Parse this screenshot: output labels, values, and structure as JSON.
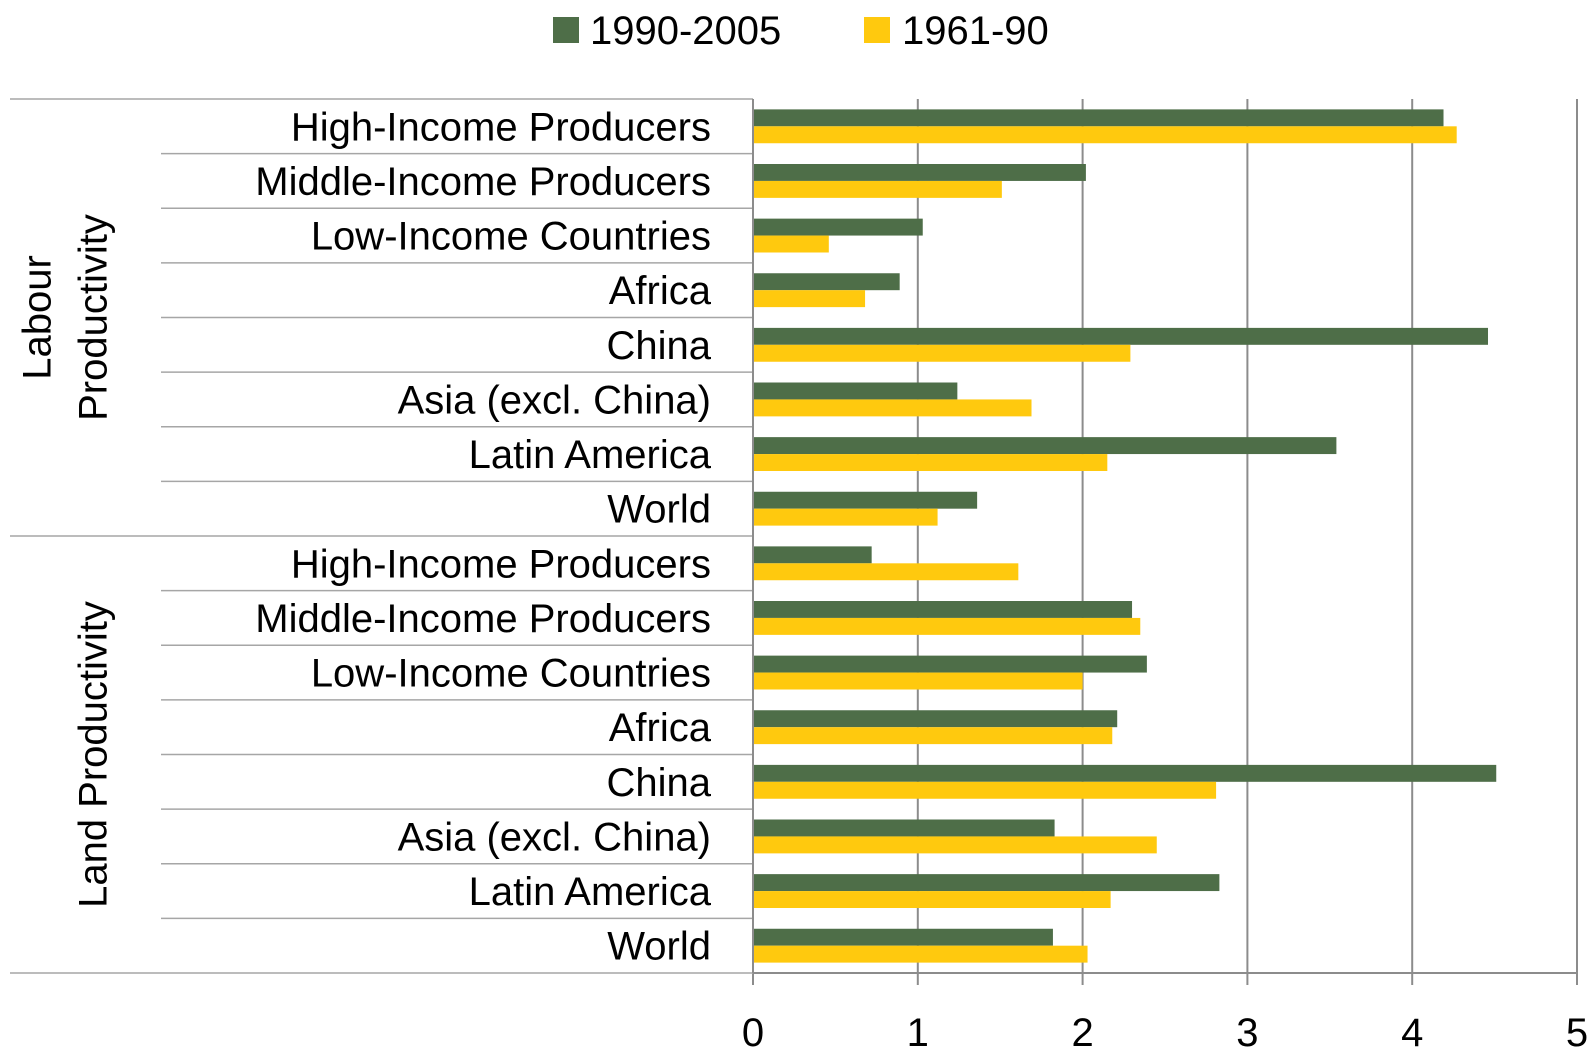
{
  "chart_data": {
    "type": "bar",
    "orientation": "horizontal",
    "legend": {
      "placement": "top-center",
      "items": [
        {
          "label": "1990-2005",
          "color": "#4e6e48"
        },
        {
          "label": "1961-90",
          "color": "#ffc90e"
        }
      ]
    },
    "xlim": [
      0,
      5
    ],
    "x_ticks": [
      "0",
      "1",
      "2",
      "3",
      "4",
      "5"
    ],
    "grid": true,
    "groups": [
      {
        "label": "Labour Productivity",
        "label_lines": [
          "Labour",
          "Productivity"
        ],
        "categories": [
          "High-Income Producers",
          "Middle-Income Producers",
          "Low-Income Countries",
          "Africa",
          "China",
          "Asia (excl. China)",
          "Latin America",
          "World"
        ],
        "series": [
          {
            "name": "1990-2005",
            "values": [
              4.19,
              2.02,
              1.03,
              0.89,
              4.46,
              1.24,
              3.54,
              1.36
            ]
          },
          {
            "name": "1961-90",
            "values": [
              4.27,
              1.51,
              0.46,
              0.68,
              2.29,
              1.69,
              2.15,
              1.12
            ]
          }
        ]
      },
      {
        "label": "Land Productivity",
        "label_lines": [
          "Land Productivity"
        ],
        "categories": [
          "High-Income Producers",
          "Middle-Income Producers",
          "Low-Income Countries",
          "Africa",
          "China",
          "Asia (excl. China)",
          "Latin America",
          "World"
        ],
        "series": [
          {
            "name": "1990-2005",
            "values": [
              0.72,
              2.3,
              2.39,
              2.21,
              4.51,
              1.83,
              2.83,
              1.82
            ]
          },
          {
            "name": "1961-90",
            "values": [
              1.61,
              2.35,
              2.0,
              2.18,
              2.81,
              2.45,
              2.17,
              2.03
            ]
          }
        ]
      }
    ]
  }
}
